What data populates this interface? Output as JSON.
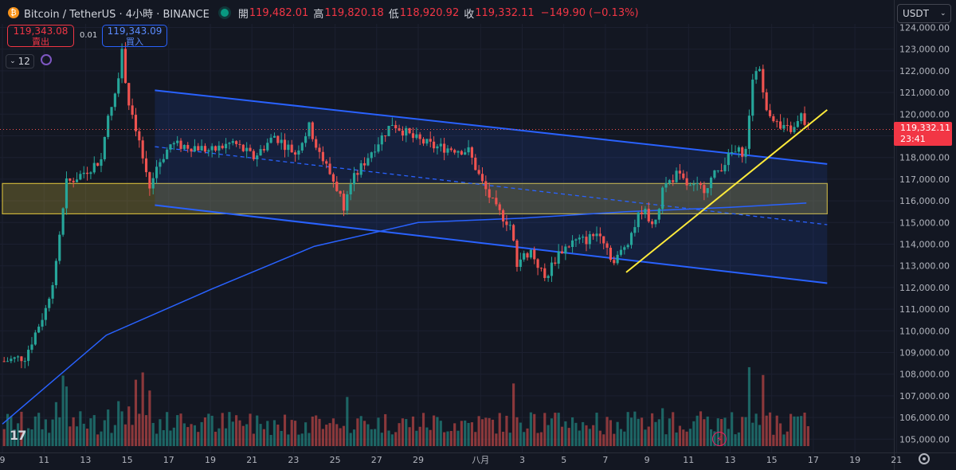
{
  "header": {
    "symbol": "Bitcoin / TetherUS · 4小時 · BINANCE",
    "logo_icon": "bitcoin-logo-icon",
    "open_label": "開",
    "open": "119,482.01",
    "high_label": "高",
    "high": "119,820.18",
    "low_label": "低",
    "low": "118,920.92",
    "close_label": "收",
    "close": "119,332.11",
    "change": "−149.90 (−0.13%)"
  },
  "trade": {
    "sell_price": "119,343.08",
    "sell_label": "賣出",
    "spread": "0.01",
    "buy_price": "119,343.09",
    "buy_label": "買入"
  },
  "interval_badge": {
    "count": "12"
  },
  "currency": "USDT",
  "last_price": {
    "price": "119,332.11",
    "countdown": "23:41"
  },
  "colors": {
    "background": "#131722",
    "up": "#26a69a",
    "down": "#ef5350",
    "channel": "#2962ff",
    "zone": "#c9b23a",
    "trendline": "#ffeb3b",
    "ma": "#2962ff"
  },
  "chart_data": {
    "type": "candlestick",
    "title": "Bitcoin / TetherUS · 4小時 · BINANCE",
    "ylim": [
      104500,
      124500
    ],
    "y_ticks": [
      105000,
      106000,
      107000,
      108000,
      109000,
      110000,
      111000,
      112000,
      113000,
      114000,
      115000,
      116000,
      117000,
      118000,
      119000,
      120000,
      121000,
      122000,
      123000,
      124000
    ],
    "y_tick_labels": [
      "105,000.00",
      "106,000.00",
      "107,000.00",
      "108,000.00",
      "109,000.00",
      "110,000.00",
      "111,000.00",
      "112,000.00",
      "113,000.00",
      "114,000.00",
      "115,000.00",
      "116,000.00",
      "117,000.00",
      "118,000.00",
      "119,000.00",
      "120,000.00",
      "121,000.00",
      "122,000.00",
      "123,000.00",
      "124,000.00"
    ],
    "x_ticks": [
      {
        "label": "9",
        "day": 0
      },
      {
        "label": "11",
        "day": 2
      },
      {
        "label": "13",
        "day": 4
      },
      {
        "label": "15",
        "day": 6
      },
      {
        "label": "17",
        "day": 8
      },
      {
        "label": "19",
        "day": 10
      },
      {
        "label": "21",
        "day": 12
      },
      {
        "label": "23",
        "day": 14
      },
      {
        "label": "25",
        "day": 16
      },
      {
        "label": "27",
        "day": 18
      },
      {
        "label": "29",
        "day": 20
      },
      {
        "label": "八月",
        "day": 23
      },
      {
        "label": "3",
        "day": 25
      },
      {
        "label": "5",
        "day": 27
      },
      {
        "label": "7",
        "day": 29
      },
      {
        "label": "9",
        "day": 31
      },
      {
        "label": "11",
        "day": 33
      },
      {
        "label": "13",
        "day": 35
      },
      {
        "label": "15",
        "day": 37
      },
      {
        "label": "17",
        "day": 39
      },
      {
        "label": "19",
        "day": 41
      },
      {
        "label": "21",
        "day": 43
      }
    ],
    "x_start": "Jul 9",
    "candles_per_day": 6,
    "price_anchors": [
      [
        0,
        108600
      ],
      [
        6,
        108800
      ],
      [
        12,
        111000
      ],
      [
        15,
        113000
      ],
      [
        18,
        116800
      ],
      [
        22,
        117200
      ],
      [
        28,
        117900
      ],
      [
        30,
        120000
      ],
      [
        32,
        121000
      ],
      [
        34,
        122800
      ],
      [
        36,
        120500
      ],
      [
        38,
        119400
      ],
      [
        40,
        118000
      ],
      [
        42,
        116600
      ],
      [
        44,
        117600
      ],
      [
        48,
        118600
      ],
      [
        55,
        118500
      ],
      [
        60,
        118300
      ],
      [
        66,
        118700
      ],
      [
        72,
        118000
      ],
      [
        78,
        119000
      ],
      [
        84,
        118200
      ],
      [
        88,
        119400
      ],
      [
        92,
        117900
      ],
      [
        96,
        116600
      ],
      [
        98,
        115800
      ],
      [
        100,
        116800
      ],
      [
        106,
        118300
      ],
      [
        112,
        119600
      ],
      [
        118,
        118900
      ],
      [
        124,
        118500
      ],
      [
        130,
        118400
      ],
      [
        134,
        118300
      ],
      [
        138,
        116800
      ],
      [
        142,
        115600
      ],
      [
        146,
        114900
      ],
      [
        148,
        113200
      ],
      [
        152,
        113700
      ],
      [
        156,
        112400
      ],
      [
        160,
        113600
      ],
      [
        164,
        114100
      ],
      [
        168,
        114200
      ],
      [
        172,
        114600
      ],
      [
        176,
        113100
      ],
      [
        180,
        114200
      ],
      [
        184,
        115600
      ],
      [
        188,
        114900
      ],
      [
        190,
        116600
      ],
      [
        194,
        117200
      ],
      [
        198,
        116600
      ],
      [
        202,
        116600
      ],
      [
        206,
        117400
      ],
      [
        210,
        118200
      ],
      [
        214,
        118300
      ],
      [
        216,
        121800
      ],
      [
        218,
        122100
      ],
      [
        220,
        120400
      ],
      [
        224,
        119300
      ],
      [
        228,
        119300
      ],
      [
        230,
        119900
      ],
      [
        232,
        119332
      ]
    ],
    "volume_scale_max": 1,
    "ma_line": {
      "points": [
        [
          0,
          105700
        ],
        [
          30,
          109800
        ],
        [
          60,
          111900
        ],
        [
          90,
          113900
        ],
        [
          120,
          115000
        ],
        [
          150,
          115200
        ],
        [
          180,
          115500
        ],
        [
          210,
          115700
        ],
        [
          232,
          115900
        ]
      ]
    },
    "channel": {
      "upper": [
        [
          44,
          121100
        ],
        [
          238,
          117700
        ]
      ],
      "lower": [
        [
          44,
          115800
        ],
        [
          238,
          112200
        ]
      ],
      "mid_dashed": [
        [
          44,
          118500
        ],
        [
          238,
          114900
        ]
      ]
    },
    "zone": {
      "y_range": [
        115400,
        116800
      ],
      "x_range": [
        0,
        238
      ]
    },
    "trendline": {
      "points": [
        [
          180,
          112700
        ],
        [
          238,
          120200
        ]
      ]
    }
  }
}
